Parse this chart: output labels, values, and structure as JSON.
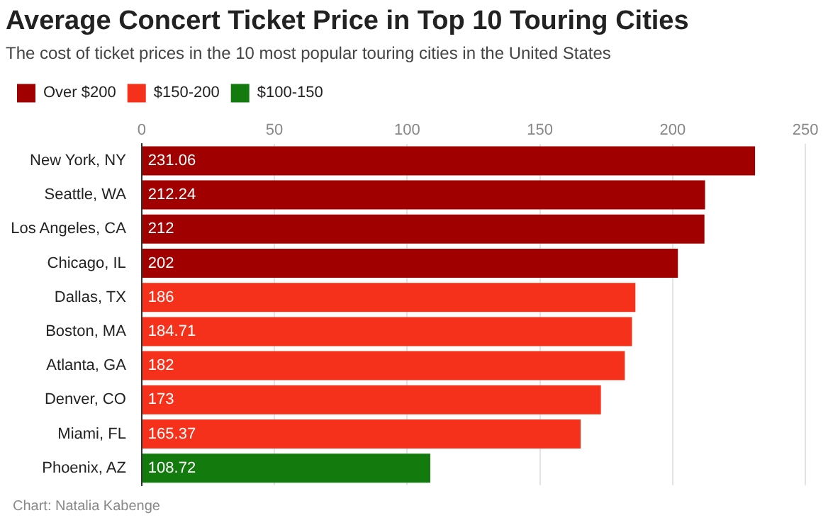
{
  "chart_data": {
    "type": "bar",
    "orientation": "horizontal",
    "title": "Average Concert Ticket Price in Top 10 Touring Cities",
    "subtitle": "The cost of ticket prices in the 10 most popular touring cities in the United States",
    "categories": [
      "New York, NY",
      "Seattle, WA",
      "Los Angeles, CA",
      "Chicago, IL",
      "Dallas, TX",
      "Boston, MA",
      "Atlanta, GA",
      "Denver, CO",
      "Miami, FL",
      "Phoenix, AZ"
    ],
    "series": [
      {
        "name": "Over $200",
        "color": "#a10000",
        "values": [
          231.06,
          212.24,
          212,
          202,
          null,
          null,
          null,
          null,
          null,
          null
        ]
      },
      {
        "name": "$150-200",
        "color": "#f5311c",
        "values": [
          null,
          null,
          null,
          null,
          186,
          184.71,
          182,
          173,
          165.37,
          null
        ]
      },
      {
        "name": "$100-150",
        "color": "#137a0e",
        "values": [
          null,
          null,
          null,
          null,
          null,
          null,
          null,
          null,
          null,
          108.72
        ]
      }
    ],
    "xlim": [
      0,
      250
    ],
    "xticks": [
      0,
      50,
      100,
      150,
      200,
      250
    ],
    "grid": "x",
    "legend": "top left",
    "data_labels": true,
    "annotations": [
      "Chart: Natalia Kabenge"
    ]
  }
}
